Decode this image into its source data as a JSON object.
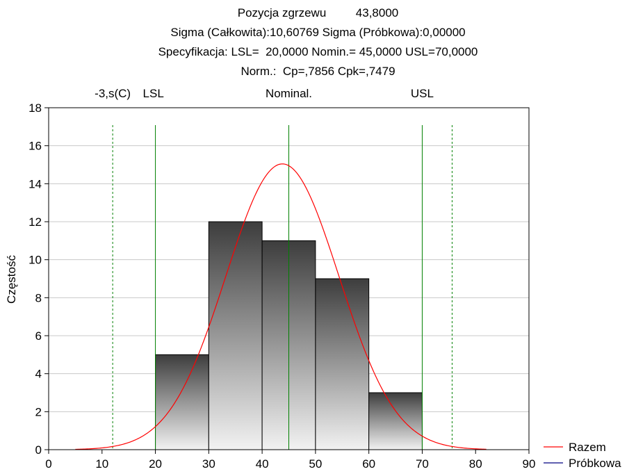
{
  "chart_data": {
    "type": "bar",
    "title_lines": [
      "Pozycja zgrzewu         43,8000",
      "Sigma (Całkowita):10,60769 Sigma (Próbkowa):0,00000",
      "Specyfikacja: LSL=  20,0000 Nomin.= 45,0000 USL=70,0000",
      "Norm.:  Cp=,7856 Cpk=,7479"
    ],
    "ylabel": "Częstość",
    "xlabel": "",
    "xlim": [
      0,
      90
    ],
    "ylim": [
      0,
      18
    ],
    "x_ticks": [
      0,
      10,
      20,
      30,
      40,
      50,
      60,
      70,
      80,
      90
    ],
    "y_ticks": [
      0,
      2,
      4,
      6,
      8,
      10,
      12,
      14,
      16,
      18
    ],
    "grid": true,
    "bins": [
      {
        "from": 20,
        "to": 30,
        "count": 5
      },
      {
        "from": 30,
        "to": 40,
        "count": 12
      },
      {
        "from": 40,
        "to": 50,
        "count": 11
      },
      {
        "from": 50,
        "to": 60,
        "count": 9
      },
      {
        "from": 60,
        "to": 70,
        "count": 3
      }
    ],
    "spec_lines": [
      {
        "label": "-3,s(C)",
        "x": 12.0,
        "style": "dashed"
      },
      {
        "label": "LSL",
        "x": 20,
        "style": "solid"
      },
      {
        "label": "Nominal.",
        "x": 45,
        "style": "solid"
      },
      {
        "label": "USL",
        "x": 70,
        "style": "solid"
      },
      {
        "label": "",
        "x": 75.6,
        "style": "dashed"
      }
    ],
    "normal_curve": {
      "mean": 43.8,
      "sigma": 10.60769,
      "n": 40,
      "bin_width": 10
    },
    "legend": {
      "position": "bottom-right",
      "items": [
        {
          "label": "Razem",
          "color": "#ff0000"
        },
        {
          "label": "Próbkowa",
          "color": "#000080"
        }
      ]
    },
    "colors": {
      "bar_top": "#3d3d3d",
      "bar_bottom": "#f2f2f2",
      "spec_line": "#008000",
      "grid": "#c8c8c8",
      "curve": "#ff0000"
    }
  }
}
